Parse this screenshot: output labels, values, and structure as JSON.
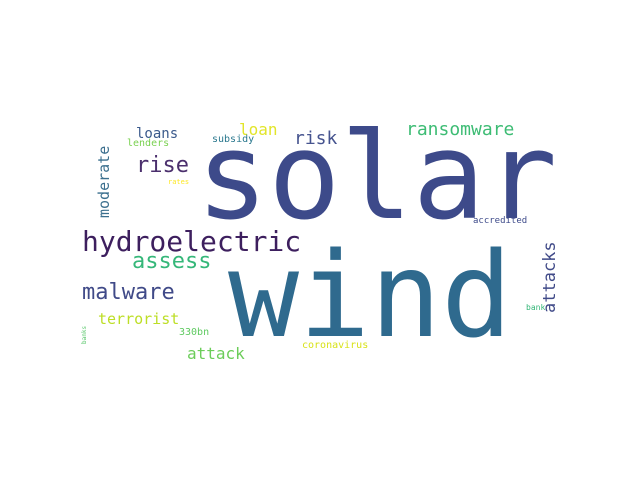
{
  "words": [
    {
      "text": "solar",
      "color": "#3d4a8a"
    },
    {
      "text": "wind",
      "color": "#2f6a8e"
    },
    {
      "text": "hydroelectric",
      "color": "#3d1f5e"
    },
    {
      "text": "assess",
      "color": "#35b779"
    },
    {
      "text": "malware",
      "color": "#404a88"
    },
    {
      "text": "ransomware",
      "color": "#3dbc74"
    },
    {
      "text": "rise",
      "color": "#4b2f6d"
    },
    {
      "text": "risk",
      "color": "#46548f"
    },
    {
      "text": "loans",
      "color": "#3b5a8c"
    },
    {
      "text": "loan",
      "color": "#e2e52a"
    },
    {
      "text": "moderate",
      "color": "#3b6f8e"
    },
    {
      "text": "attacks",
      "color": "#404a88"
    },
    {
      "text": "terrorist",
      "color": "#bdde26"
    },
    {
      "text": "attack",
      "color": "#6ccd5a"
    },
    {
      "text": "subsidy",
      "color": "#2a788e"
    },
    {
      "text": "lenders",
      "color": "#7ad151"
    },
    {
      "text": "rates",
      "color": "#fde725"
    },
    {
      "text": "accredited",
      "color": "#3e4b8a"
    },
    {
      "text": "bank",
      "color": "#35b779"
    },
    {
      "text": "330bn",
      "color": "#5fca61"
    },
    {
      "text": "coronavirus",
      "color": "#d8e219"
    },
    {
      "text": "banks",
      "color": "#55c667"
    }
  ]
}
